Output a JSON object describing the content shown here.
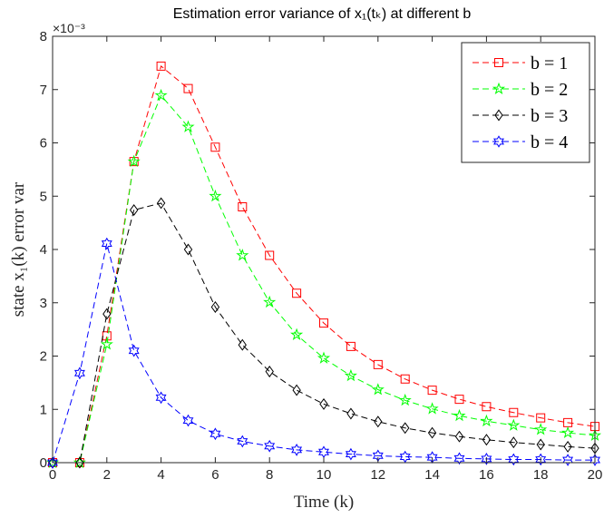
{
  "chart_data": {
    "type": "line",
    "title": "Estimation error variance of x₁(tₖ) at different b",
    "xlabel": "Time (k)",
    "ylabel": "state x₁(k) error var",
    "y_exponent_label": "×10⁻³",
    "xlim": [
      0,
      20
    ],
    "ylim": [
      0,
      8
    ],
    "x_ticks": [
      0,
      2,
      4,
      6,
      8,
      10,
      12,
      14,
      16,
      18,
      20
    ],
    "y_ticks": [
      0,
      1,
      2,
      3,
      4,
      5,
      6,
      7,
      8
    ],
    "grid": false,
    "legend_position": "top-right",
    "x": [
      0,
      1,
      2,
      3,
      4,
      5,
      6,
      7,
      8,
      9,
      10,
      11,
      12,
      13,
      14,
      15,
      16,
      17,
      18,
      19,
      20
    ],
    "series": [
      {
        "name": "b = 1",
        "color": "#ff0000",
        "marker": "square",
        "values": [
          0,
          0,
          2.38,
          5.65,
          7.44,
          7.02,
          5.92,
          4.8,
          3.89,
          3.18,
          2.62,
          2.18,
          1.84,
          1.57,
          1.36,
          1.19,
          1.05,
          0.94,
          0.84,
          0.75,
          0.68
        ]
      },
      {
        "name": "b = 2",
        "color": "#00ff00",
        "marker": "star",
        "values": [
          0,
          0,
          2.22,
          5.65,
          6.89,
          6.3,
          5.0,
          3.89,
          3.01,
          2.4,
          1.96,
          1.63,
          1.37,
          1.17,
          1.01,
          0.88,
          0.78,
          0.7,
          0.62,
          0.56,
          0.51
        ]
      },
      {
        "name": "b = 3",
        "color": "#000000",
        "marker": "diamond",
        "values": [
          0,
          0,
          2.79,
          4.74,
          4.87,
          4.0,
          2.92,
          2.21,
          1.71,
          1.36,
          1.1,
          0.92,
          0.77,
          0.65,
          0.56,
          0.49,
          0.43,
          0.38,
          0.34,
          0.3,
          0.27
        ]
      },
      {
        "name": "b = 4",
        "color": "#0000ff",
        "marker": "hexagram",
        "values": [
          0,
          1.68,
          4.11,
          2.1,
          1.22,
          0.79,
          0.54,
          0.4,
          0.31,
          0.24,
          0.2,
          0.16,
          0.13,
          0.11,
          0.1,
          0.08,
          0.07,
          0.06,
          0.06,
          0.05,
          0.05
        ]
      }
    ]
  }
}
